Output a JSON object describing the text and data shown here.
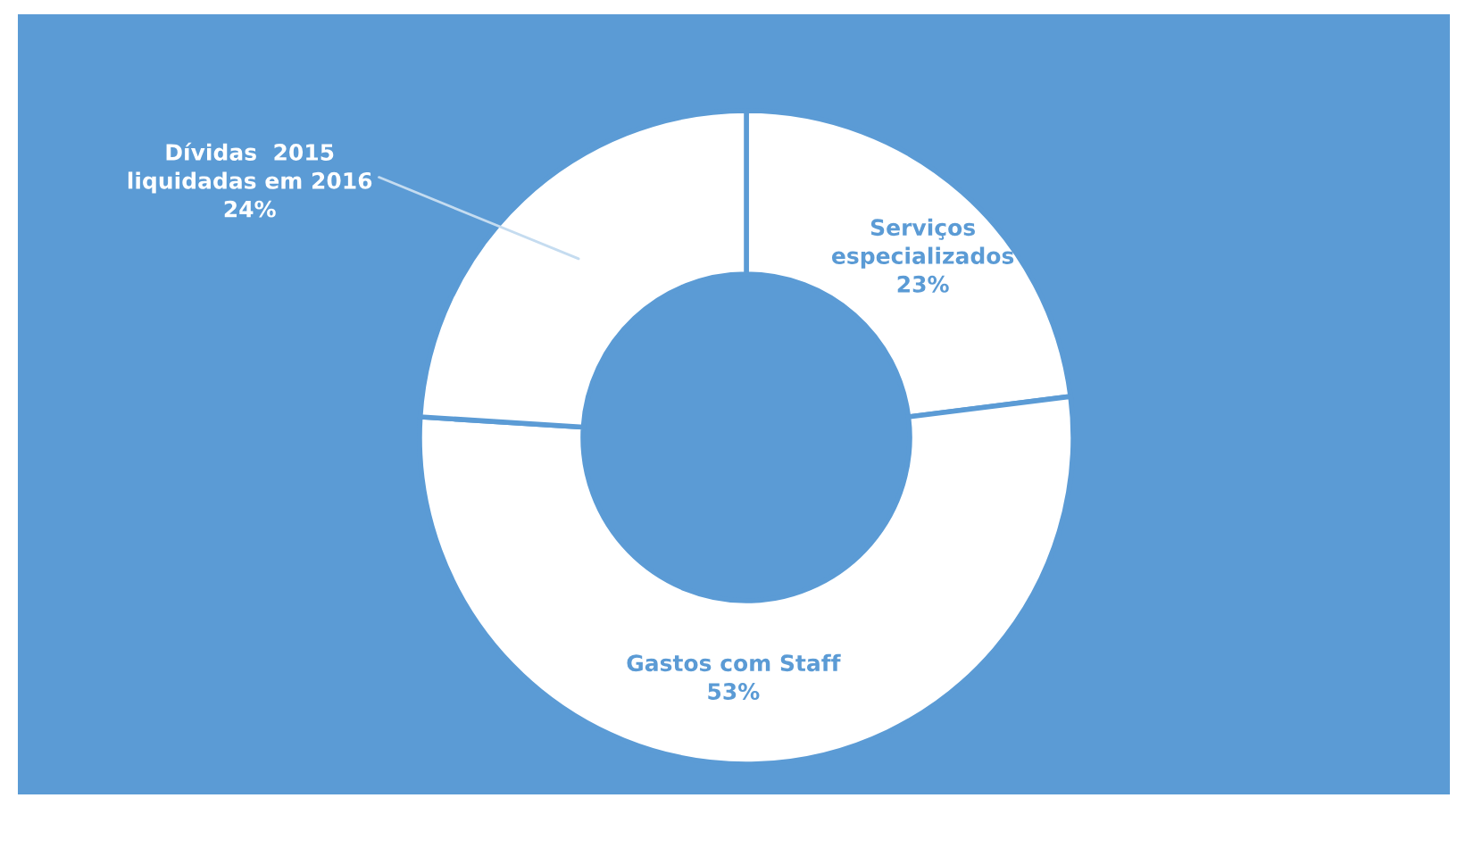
{
  "chart_data": {
    "type": "donut",
    "categories": [
      "Serviços\nespecializados",
      "Gastos com Staff",
      "Dívidas  2015\nliquidadas em 2016"
    ],
    "values": [
      23,
      53,
      24
    ],
    "colors": [
      "#ffffff",
      "#ffffff",
      "#ffffff"
    ],
    "value_labels": [
      "23%",
      "53%",
      "24%"
    ]
  }
}
